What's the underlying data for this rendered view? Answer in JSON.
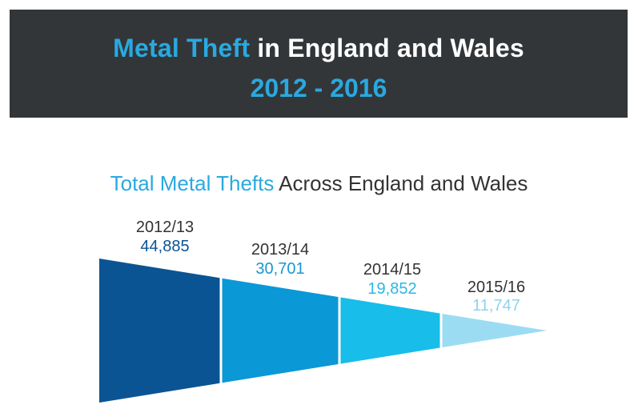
{
  "header": {
    "title_highlight": "Metal Theft",
    "title_rest": " in England and Wales",
    "years": "2012 - 2016"
  },
  "chart_data": {
    "type": "bar",
    "style": "tapered funnel",
    "title_highlight": "Total Metal Thefts",
    "title_rest": " Across England and Wales",
    "categories": [
      "2012/13",
      "2013/14",
      "2014/15",
      "2015/16"
    ],
    "values": [
      44885,
      30701,
      19852,
      11747
    ],
    "value_labels": [
      "44,885",
      "30,701",
      "19,852",
      "11,747"
    ],
    "segment_colors": [
      "#0b5494",
      "#0a98d6",
      "#18bde9",
      "#9cdcf3"
    ],
    "label_colors": [
      "#0b5494",
      "#1a97d3",
      "#2bb7e6",
      "#8fd3ef"
    ],
    "year_color": "#333333",
    "accent": "#29a9e0"
  }
}
